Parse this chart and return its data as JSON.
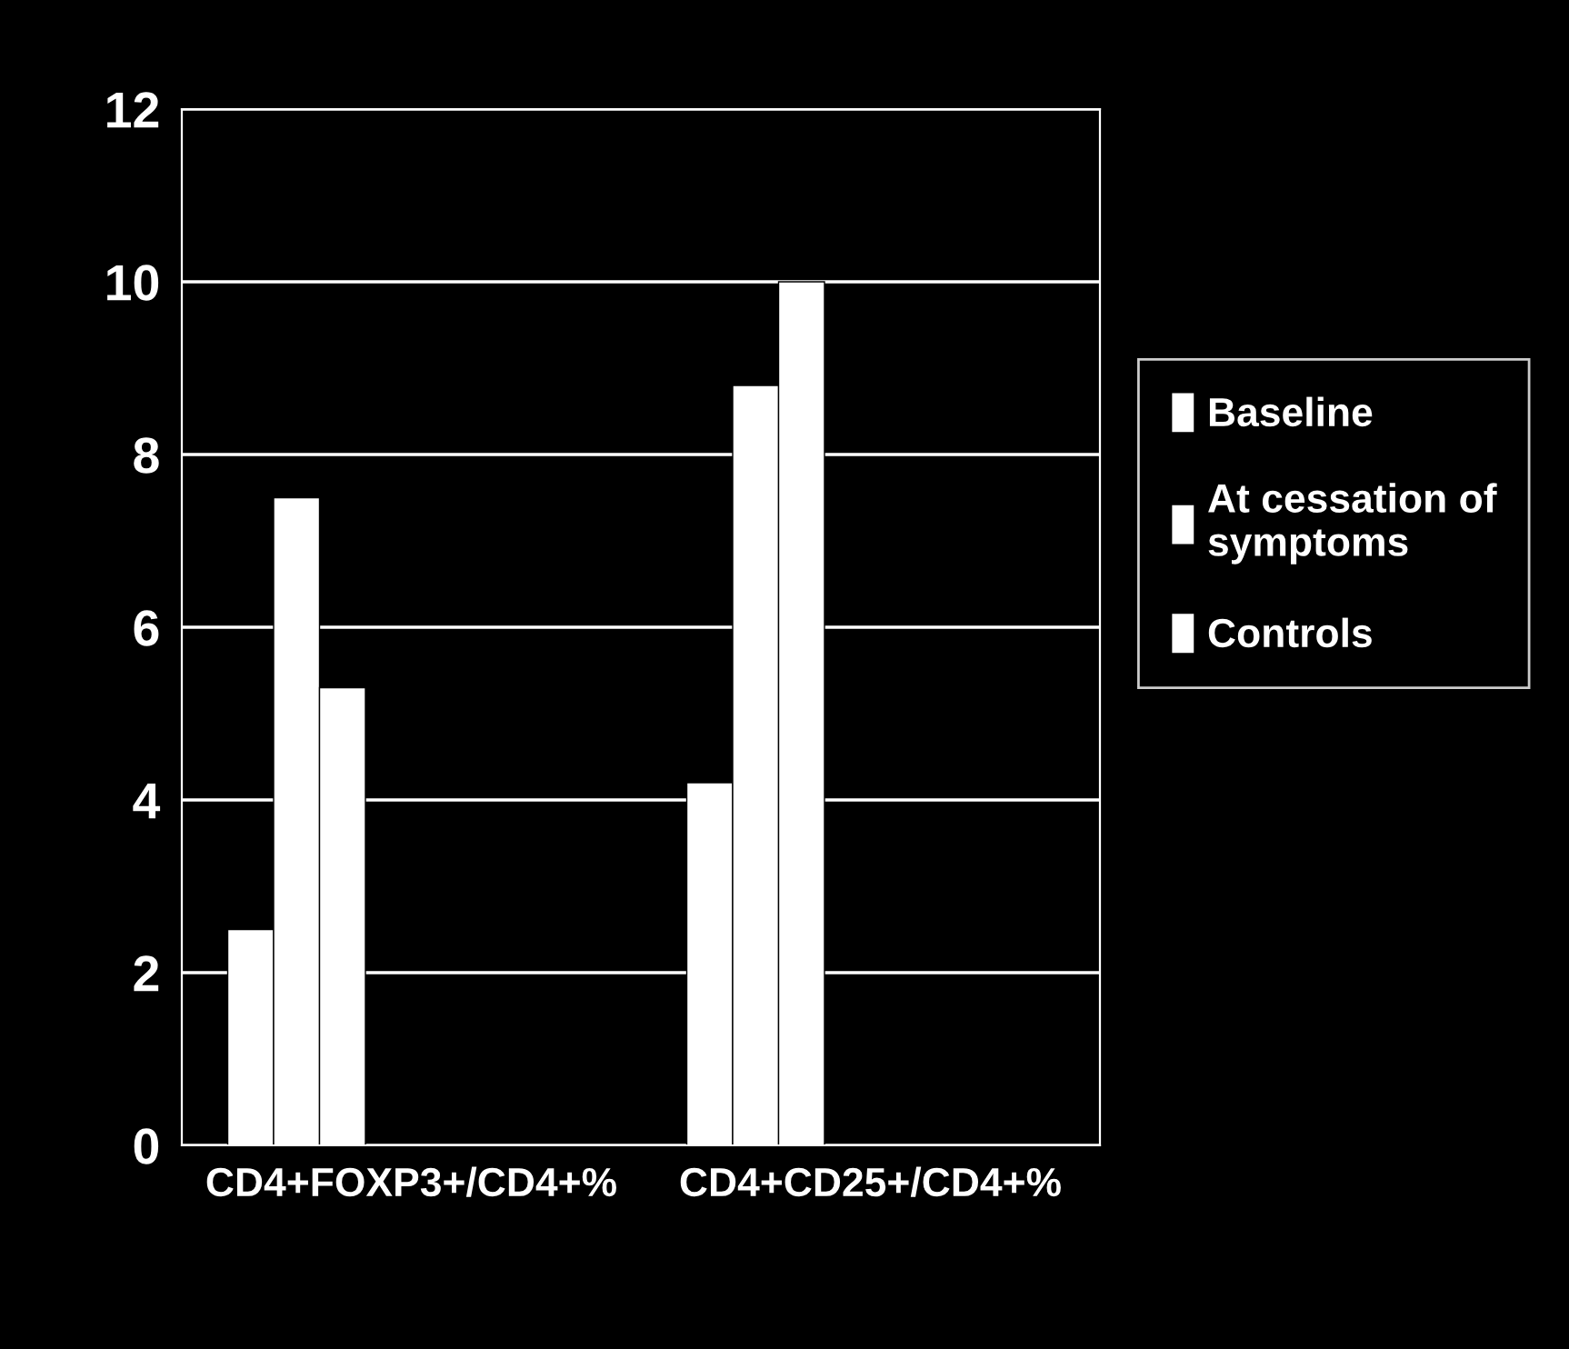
{
  "chart_data": {
    "type": "bar",
    "categories": [
      "CD4+FOXP3+/CD4+%",
      "CD4+CD25+/CD4+%"
    ],
    "series": [
      {
        "name": "Baseline",
        "color": "#ffffff",
        "values": [
          2.5,
          4.2
        ]
      },
      {
        "name": "At cessation of symptoms",
        "color": "#ffffff",
        "values": [
          7.5,
          8.8
        ]
      },
      {
        "name": "Controls",
        "color": "#ffffff",
        "values": [
          5.3,
          10.0
        ]
      }
    ],
    "ylim": [
      0,
      12
    ],
    "yticks": [
      0,
      2,
      4,
      6,
      8,
      10,
      12
    ],
    "grid": "y",
    "legend": "right"
  }
}
